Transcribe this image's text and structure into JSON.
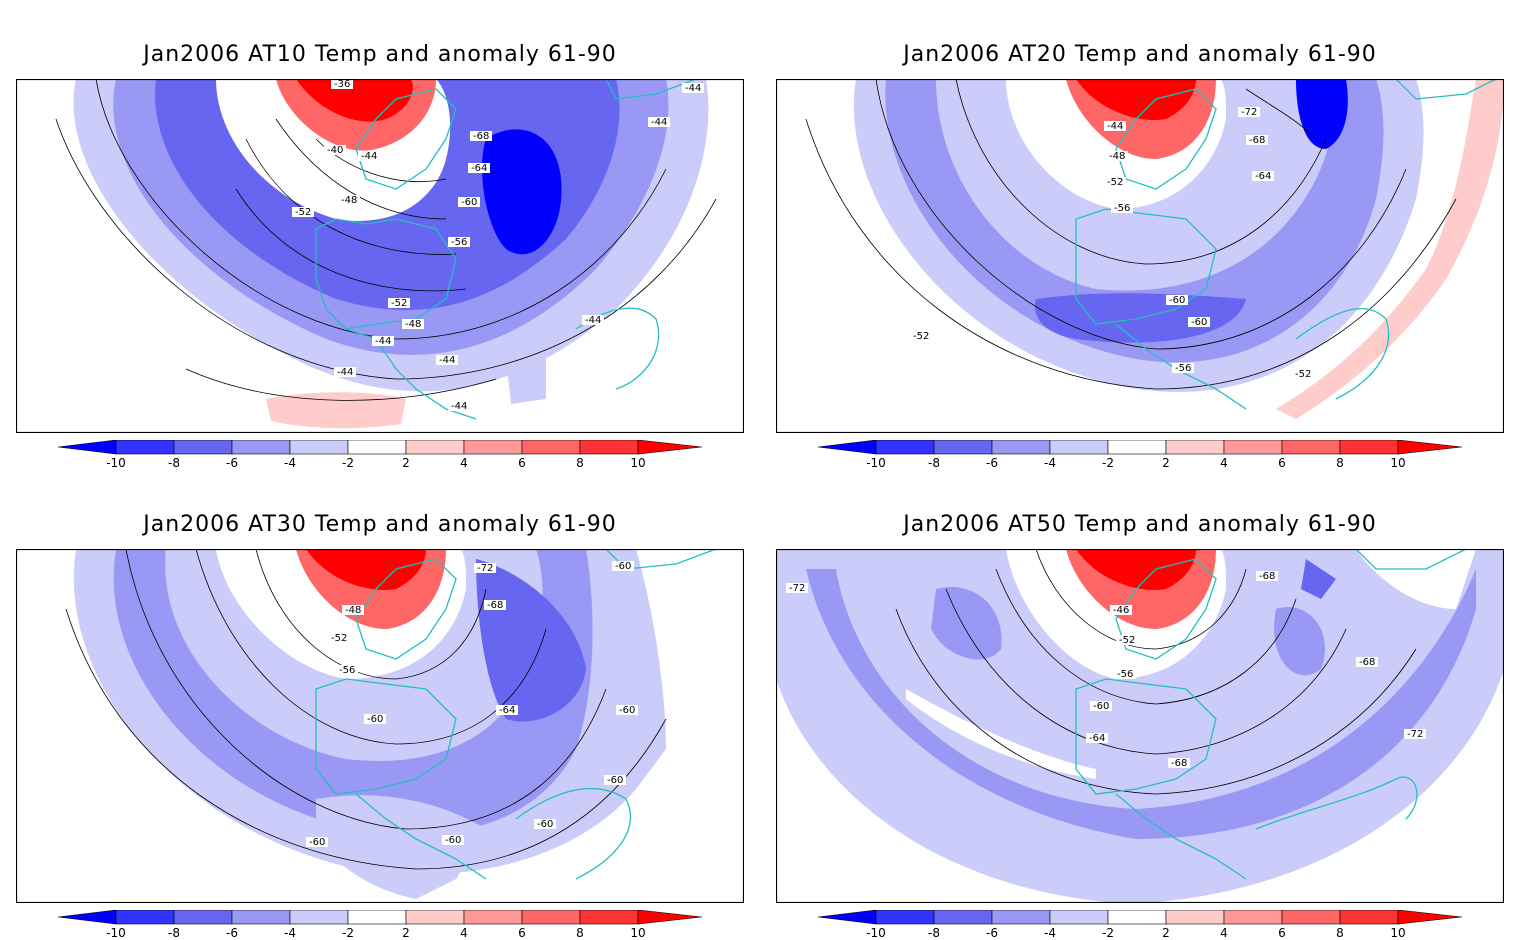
{
  "panels": [
    {
      "title": "Jan2006 AT10 Temp and anomaly 61-90",
      "contour_labels": [
        "-36",
        "-40",
        "-44",
        "-48",
        "-52",
        "-56",
        "-60",
        "-64",
        "-68",
        "-44",
        "-44",
        "-52",
        "-48",
        "-44",
        "-44",
        "-44",
        "-44",
        "-44"
      ]
    },
    {
      "title": "Jan2006 AT20 Temp and anomaly 61-90",
      "contour_labels": [
        "-44",
        "-48",
        "-52",
        "-56",
        "-72",
        "-68",
        "-64",
        "-60",
        "-60",
        "-56",
        "-52",
        "-52"
      ]
    },
    {
      "title": "Jan2006 AT30 Temp and anomaly 61-90",
      "contour_labels": [
        "-48",
        "-52",
        "-56",
        "-60",
        "-72",
        "-68",
        "-64",
        "-60",
        "-60",
        "-60",
        "-60",
        "-60",
        "-60"
      ]
    },
    {
      "title": "Jan2006 AT50 Temp and anomaly 61-90",
      "contour_labels": [
        "-46",
        "-52",
        "-56",
        "-60",
        "-64",
        "-68",
        "-68",
        "-68",
        "-72",
        "-72"
      ]
    }
  ],
  "colorbar": {
    "ticks": [
      "-10",
      "-8",
      "-6",
      "-4",
      "-2",
      "2",
      "4",
      "6",
      "8",
      "10"
    ],
    "colors": [
      "#0000ff",
      "#3333ff",
      "#6666f0",
      "#9999f5",
      "#ccccfa",
      "#ffffff",
      "#ffcccc",
      "#ff9999",
      "#ff6666",
      "#ff3333",
      "#ff0000"
    ]
  },
  "colors": {
    "coastline": "#22bfbf",
    "frame": "#000000"
  }
}
